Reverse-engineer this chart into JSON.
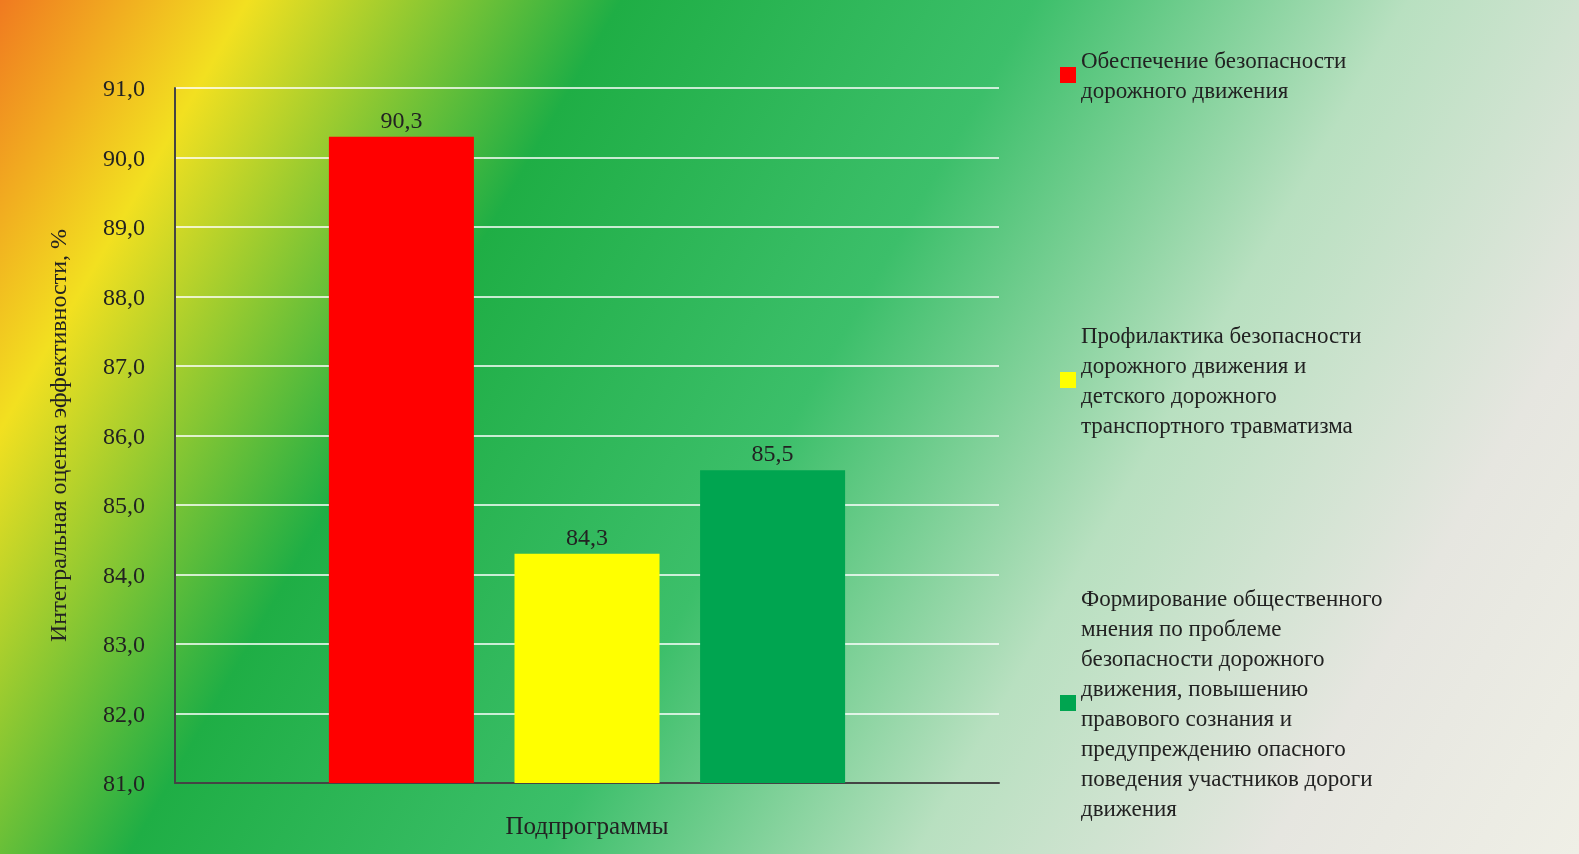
{
  "chart_data": {
    "type": "bar",
    "xlabel": "Подпрограммы",
    "ylabel": "Интегральная оценка эффективности, %",
    "categories": [
      null
    ],
    "series": [
      {
        "name": "Обеспечение безопасности дорожного движения",
        "color": "#ff0000",
        "values": [
          90.3
        ],
        "value_labels": [
          "90,3"
        ]
      },
      {
        "name": "Профилактика безопасности дорожного движения и детского дорожного транспортного травматизма",
        "color": "#ffff00",
        "values": [
          84.3
        ],
        "value_labels": [
          "84,3"
        ]
      },
      {
        "name": "Формирование общественного мнения по проблеме безопасности дорожного движения, повышению правового сознания и предупреждению опасного поведения участников дороги движения",
        "color": "#00a550",
        "values": [
          85.5
        ],
        "value_labels": [
          "85,5"
        ]
      }
    ],
    "ylim": [
      81,
      91
    ],
    "yticks": [
      {
        "value": 81,
        "label": "81,0"
      },
      {
        "value": 82,
        "label": "82,0"
      },
      {
        "value": 83,
        "label": "83,0"
      },
      {
        "value": 84,
        "label": "84,0"
      },
      {
        "value": 85,
        "label": "85,0"
      },
      {
        "value": 86,
        "label": "86,0"
      },
      {
        "value": 87,
        "label": "87,0"
      },
      {
        "value": 88,
        "label": "88,0"
      },
      {
        "value": 89,
        "label": "89,0"
      },
      {
        "value": 90,
        "label": "90,0"
      },
      {
        "value": 91,
        "label": "91,0"
      }
    ],
    "grid": "y",
    "legend": "right"
  }
}
